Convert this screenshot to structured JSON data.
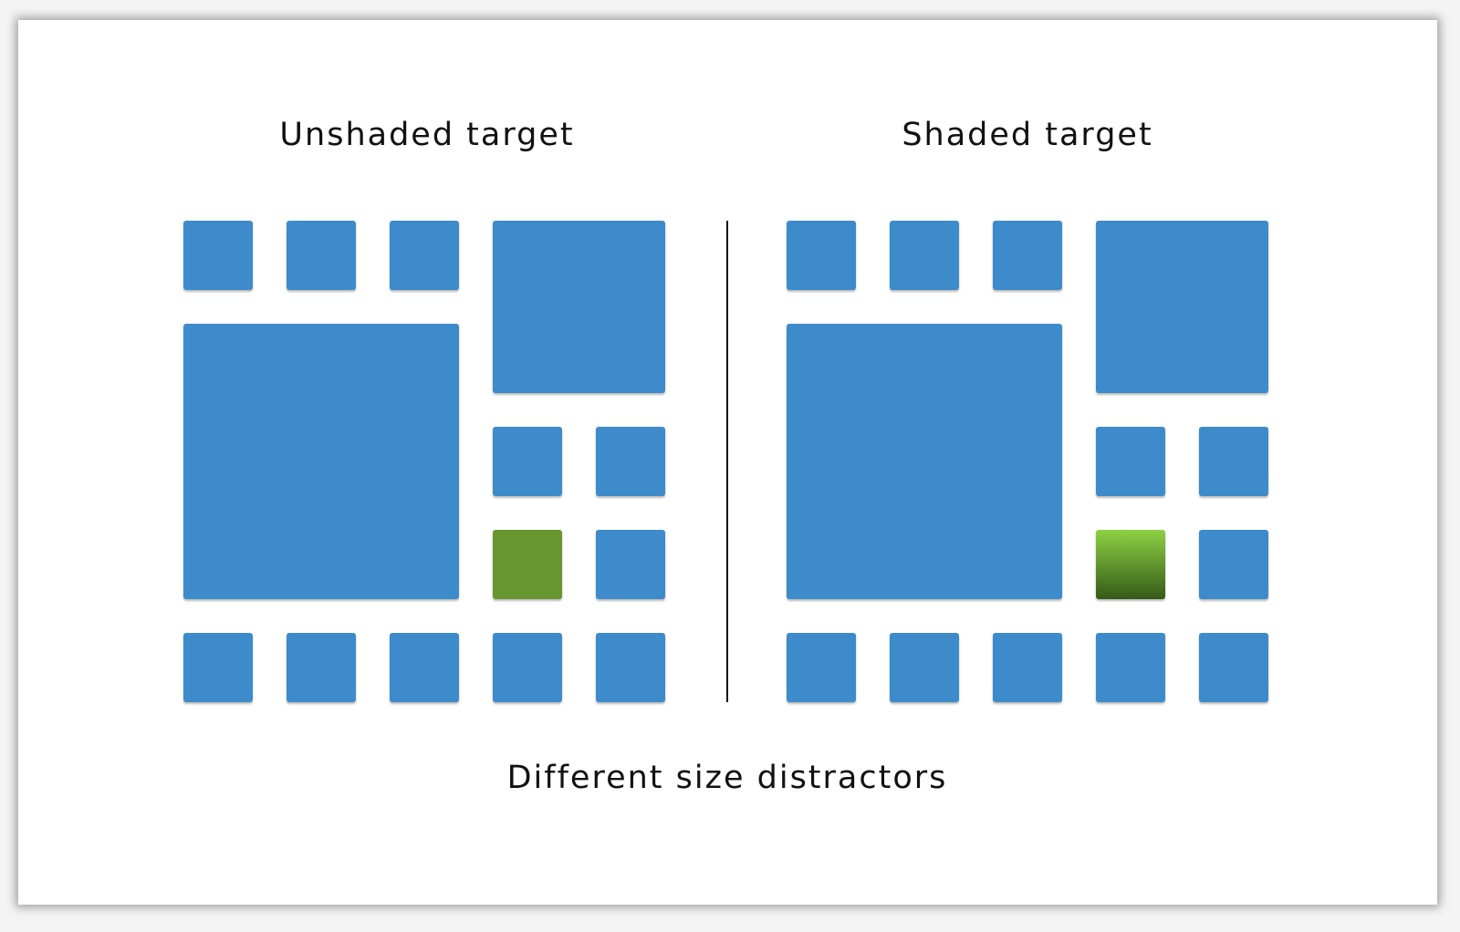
{
  "titles": {
    "left": "Unshaded target",
    "right": "Shaded target"
  },
  "caption": "Different size distractors",
  "colors": {
    "distractor": "#3e8bcb",
    "target_flat": "#67952e",
    "target_gradient_top": "#8fd145",
    "target_gradient_bottom": "#345a17",
    "divider": "#111111"
  },
  "panels": [
    {
      "id": "unshaded",
      "target_style": "flat",
      "distractors": [
        {
          "size": "small",
          "name": "distractor-small-top-1"
        },
        {
          "size": "small",
          "name": "distractor-small-top-2"
        },
        {
          "size": "small",
          "name": "distractor-small-top-3"
        },
        {
          "size": "medium",
          "name": "distractor-medium-top-right"
        },
        {
          "size": "large",
          "name": "distractor-large-left"
        },
        {
          "size": "small",
          "name": "distractor-small-mid-1"
        },
        {
          "size": "small",
          "name": "distractor-small-mid-2"
        },
        {
          "size": "small",
          "name": "distractor-small-mid-3"
        },
        {
          "size": "small",
          "name": "distractor-small-bottom-1"
        },
        {
          "size": "small",
          "name": "distractor-small-bottom-2"
        },
        {
          "size": "small",
          "name": "distractor-small-bottom-3"
        },
        {
          "size": "small",
          "name": "distractor-small-bottom-4"
        },
        {
          "size": "small",
          "name": "distractor-small-bottom-5"
        }
      ]
    },
    {
      "id": "shaded",
      "target_style": "gradient",
      "distractors": [
        {
          "size": "small",
          "name": "distractor-small-top-1"
        },
        {
          "size": "small",
          "name": "distractor-small-top-2"
        },
        {
          "size": "small",
          "name": "distractor-small-top-3"
        },
        {
          "size": "medium",
          "name": "distractor-medium-top-right"
        },
        {
          "size": "large",
          "name": "distractor-large-left"
        },
        {
          "size": "small",
          "name": "distractor-small-mid-1"
        },
        {
          "size": "small",
          "name": "distractor-small-mid-2"
        },
        {
          "size": "small",
          "name": "distractor-small-mid-3"
        },
        {
          "size": "small",
          "name": "distractor-small-bottom-1"
        },
        {
          "size": "small",
          "name": "distractor-small-bottom-2"
        },
        {
          "size": "small",
          "name": "distractor-small-bottom-3"
        },
        {
          "size": "small",
          "name": "distractor-small-bottom-4"
        },
        {
          "size": "small",
          "name": "distractor-small-bottom-5"
        }
      ]
    }
  ]
}
